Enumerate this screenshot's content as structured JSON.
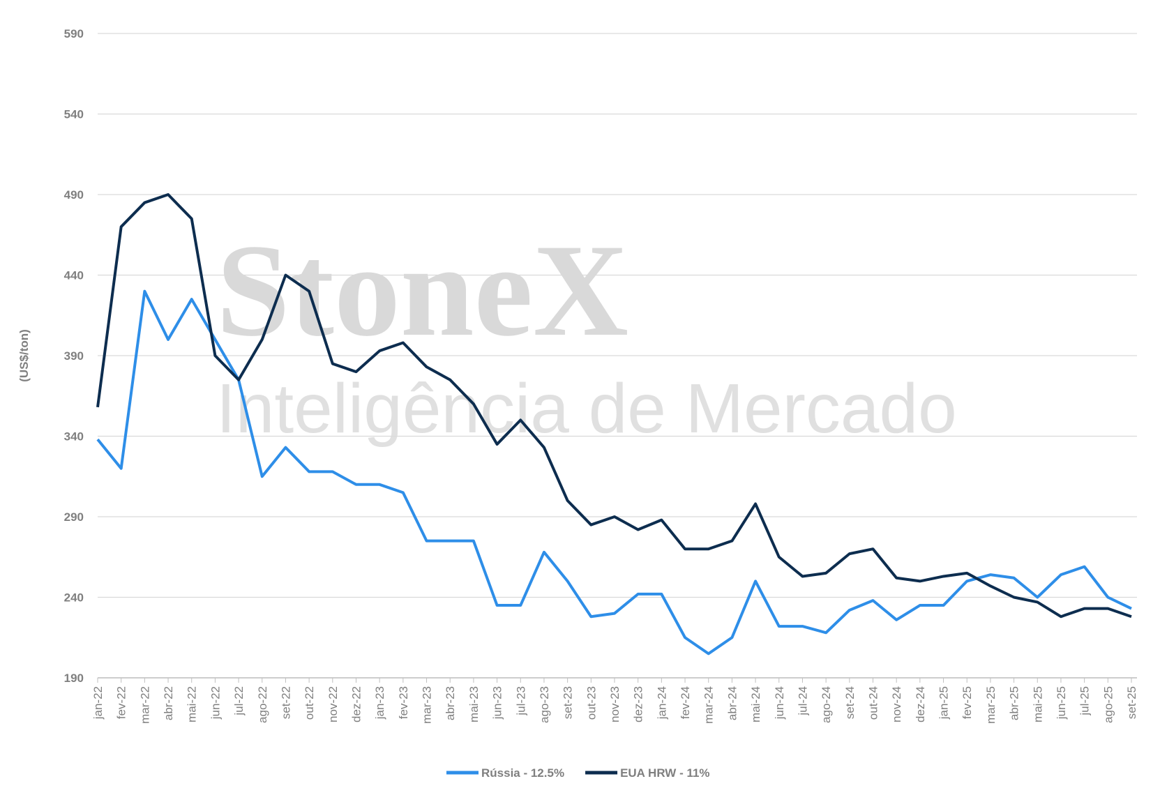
{
  "chart_data": {
    "type": "line",
    "ylabel": "(US$/ton)",
    "watermark": "StoneX",
    "watermark_sub": "Inteligência de Mercado",
    "categories": [
      "jan-22",
      "fev-22",
      "mar-22",
      "abr-22",
      "mai-22",
      "jun-22",
      "jul-22",
      "ago-22",
      "set-22",
      "out-22",
      "nov-22",
      "dez-22",
      "jan-23",
      "fev-23",
      "mar-23",
      "abr-23",
      "mai-23",
      "jun-23",
      "jul-23",
      "ago-23",
      "set-23",
      "out-23",
      "nov-23",
      "dez-23",
      "jan-24",
      "fev-24",
      "mar-24",
      "abr-24",
      "mai-24",
      "jun-24",
      "jul-24",
      "ago-24",
      "set-24",
      "out-24",
      "nov-24",
      "dez-24",
      "jan-25",
      "fev-25",
      "mar-25",
      "abr-25",
      "mai-25",
      "jun-25",
      "jul-25",
      "ago-25",
      "set-25"
    ],
    "series": [
      {
        "name": "Rússia - 12.5%",
        "color": "#2e8ee8",
        "values": [
          338,
          320,
          430,
          400,
          425,
          400,
          375,
          315,
          333,
          318,
          318,
          310,
          310,
          305,
          275,
          275,
          275,
          235,
          235,
          268,
          250,
          228,
          230,
          242,
          242,
          215,
          205,
          215,
          250,
          222,
          222,
          218,
          232,
          238,
          226,
          235,
          235,
          250,
          254,
          252,
          240,
          254,
          259,
          240,
          233
        ]
      },
      {
        "name": "EUA HRW - 11%",
        "color": "#0d2d4f",
        "values": [
          358,
          470,
          485,
          490,
          475,
          390,
          375,
          400,
          440,
          430,
          385,
          380,
          393,
          398,
          383,
          375,
          360,
          335,
          350,
          333,
          300,
          285,
          290,
          282,
          288,
          270,
          270,
          275,
          298,
          265,
          253,
          255,
          267,
          270,
          252,
          250,
          253,
          255,
          247,
          240,
          237,
          228,
          233,
          233,
          228
        ]
      }
    ],
    "ylim": [
      190,
      590
    ],
    "yticks": [
      190,
      240,
      290,
      340,
      390,
      440,
      490,
      540,
      590
    ],
    "grid": true,
    "legend": "bottom"
  }
}
